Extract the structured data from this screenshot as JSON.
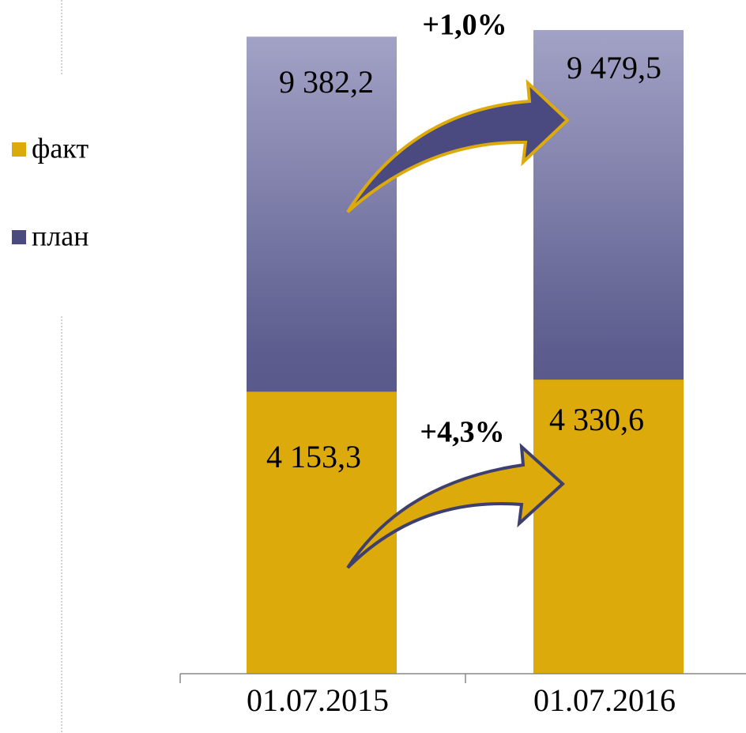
{
  "chart_data": {
    "type": "bar",
    "categories": [
      "01.07.2015",
      "01.07.2016"
    ],
    "series": [
      {
        "name": "факт",
        "color": "#DDAA0C",
        "values": [
          4153.3,
          4330.6
        ],
        "value_labels": [
          "4 153,3",
          "4 330,6"
        ]
      },
      {
        "name": "план",
        "color": "#4A4A7E",
        "values": [
          9382.2,
          9479.5
        ],
        "value_labels": [
          "9 382,2",
          "9 479,5"
        ]
      }
    ],
    "annotations": [
      "+1,0%",
      "+4,3%"
    ]
  }
}
